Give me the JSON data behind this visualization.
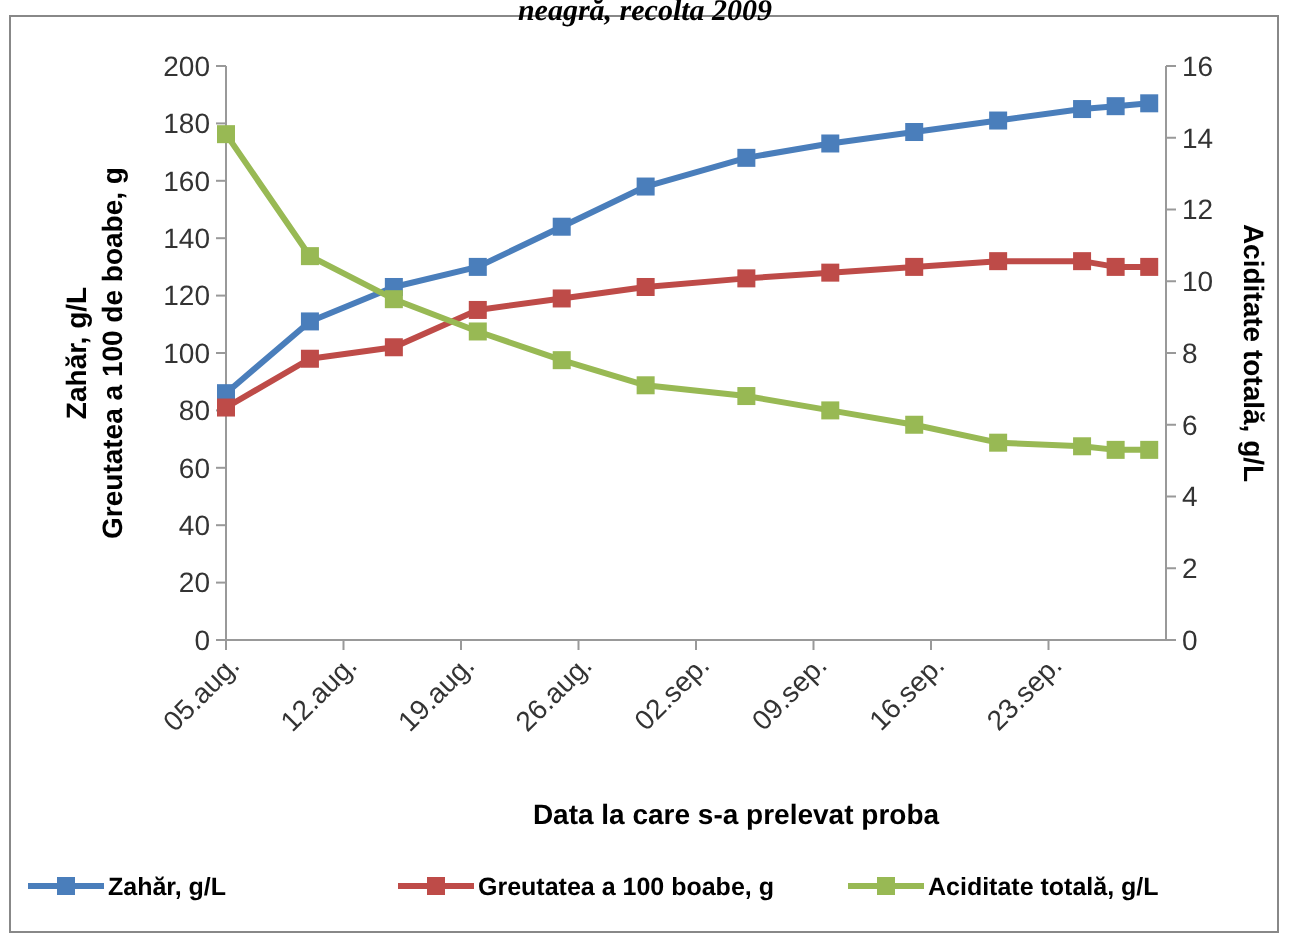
{
  "chart_data": {
    "type": "line",
    "title": "neagră, recolta 2009",
    "xlabel": "Data la care s-a prelevat proba",
    "ylabel": "Zahăr, g/L\nGreutatea a 100 de boabe, g",
    "y2label": "Aciditate totală, g/L",
    "x": [
      "2009-08-05",
      "2009-08-10",
      "2009-08-15",
      "2009-08-20",
      "2009-08-25",
      "2009-08-30",
      "2009-09-05",
      "2009-09-10",
      "2009-09-15",
      "2009-09-20",
      "2009-09-25",
      "2009-09-27",
      "2009-09-29"
    ],
    "xlim": [
      "2009-08-05",
      "2009-09-30"
    ],
    "xticks": [
      {
        "value": "2009-08-05",
        "label": "05.aug."
      },
      {
        "value": "2009-08-12",
        "label": "12.aug."
      },
      {
        "value": "2009-08-19",
        "label": "19.aug."
      },
      {
        "value": "2009-08-26",
        "label": "26.aug."
      },
      {
        "value": "2009-09-02",
        "label": "02.sep."
      },
      {
        "value": "2009-09-09",
        "label": "09.sep."
      },
      {
        "value": "2009-09-16",
        "label": "16.sep."
      },
      {
        "value": "2009-09-23",
        "label": "23.sep."
      }
    ],
    "ylim": [
      0,
      200
    ],
    "yticks": [
      0,
      20,
      40,
      60,
      80,
      100,
      120,
      140,
      160,
      180,
      200
    ],
    "y2lim": [
      0,
      16
    ],
    "y2ticks": [
      0,
      2,
      4,
      6,
      8,
      10,
      12,
      14,
      16
    ],
    "series": [
      {
        "name": "Zahăr, g/L",
        "color": "#4a7ebb",
        "values": [
          86,
          111,
          123,
          130,
          144,
          158,
          168,
          173,
          177,
          181,
          185,
          186,
          187
        ]
      },
      {
        "name": "Greutatea a 100 boabe, g",
        "color": "#be4b48",
        "values": [
          81,
          98,
          102,
          115,
          119,
          123,
          126,
          128,
          130,
          132,
          132,
          130,
          130
        ]
      },
      {
        "name": "Aciditate totală, g/L",
        "color": "#98b954",
        "axis": "y2",
        "values": [
          14.1,
          10.7,
          9.5,
          8.6,
          7.8,
          7.1,
          6.8,
          6.4,
          6,
          5.5,
          5.4,
          5.3,
          5.3
        ]
      }
    ],
    "marker": "square",
    "line_style": "solid",
    "grid": false,
    "legend": "bottom"
  }
}
